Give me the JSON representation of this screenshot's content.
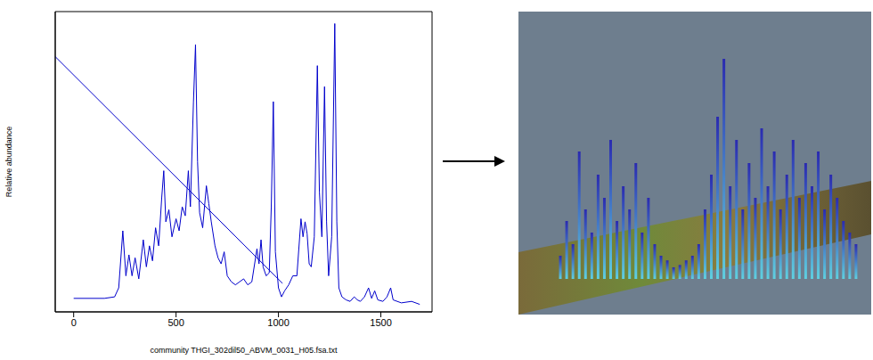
{
  "chart_data": [
    {
      "type": "line",
      "xlabel": "community THGI_302dil50_ABVM_0031_H05.fsa.txt",
      "ylabel": "Relative abundance",
      "xlim": [
        -90,
        1750
      ],
      "xticks": [
        0,
        500,
        1000,
        1500
      ],
      "ylim": [
        0,
        100
      ],
      "tick_labels": "x",
      "series": [
        {
          "color": "#0000cc",
          "x": [
            0,
            150,
            200,
            220,
            240,
            255,
            270,
            285,
            300,
            318,
            340,
            355,
            370,
            385,
            400,
            415,
            430,
            440,
            450,
            465,
            480,
            500,
            515,
            530,
            545,
            560,
            570,
            585,
            595,
            605,
            615,
            630,
            648,
            660,
            672,
            690,
            705,
            720,
            735,
            750,
            770,
            790,
            810,
            830,
            850,
            870,
            895,
            905,
            915,
            925,
            940,
            955,
            965,
            975,
            985,
            1000,
            1015,
            1030,
            1050,
            1070,
            1090,
            1110,
            1120,
            1130,
            1140,
            1150,
            1160,
            1175,
            1190,
            1200,
            1212,
            1225,
            1235,
            1245,
            1260,
            1275,
            1285,
            1295,
            1310,
            1330,
            1350,
            1370,
            1385,
            1400,
            1420,
            1440,
            1455,
            1470,
            1485,
            1510,
            1530,
            1548,
            1560,
            1600,
            1650,
            1690
          ],
          "values": [
            4.5,
            4.5,
            5,
            8,
            27,
            12,
            19,
            12,
            18,
            11,
            24,
            15,
            22,
            17,
            28,
            22,
            38,
            47,
            30,
            34,
            25,
            31,
            27,
            35,
            32,
            47,
            35,
            70,
            89,
            50,
            33,
            28,
            42,
            36,
            30,
            22,
            18,
            16,
            20,
            12,
            10,
            9,
            10,
            11,
            9,
            10,
            21,
            16,
            24,
            15,
            12,
            13,
            35,
            70,
            20,
            8,
            5,
            7,
            9,
            12,
            12,
            31,
            25,
            30,
            26,
            16,
            15,
            25,
            82,
            40,
            25,
            75,
            30,
            12,
            25,
            96,
            30,
            8,
            5,
            4,
            3.5,
            5,
            4,
            3.5,
            5,
            8,
            4.5,
            7,
            4,
            3.5,
            5,
            8,
            4,
            3,
            3.5,
            2.5
          ]
        },
        {
          "color": "#0000cc",
          "x": [
            -90,
            1020
          ],
          "values": [
            85,
            9.5
          ]
        }
      ]
    },
    {
      "type": "bar",
      "x": [
        1,
        2,
        3,
        4,
        5,
        6,
        7,
        8,
        9,
        10,
        11,
        12,
        13,
        14,
        15,
        16,
        17,
        18,
        19,
        20,
        21,
        22,
        23,
        24,
        25,
        26,
        27,
        28,
        29,
        30,
        31,
        32,
        33,
        34,
        35,
        36,
        37,
        38,
        39,
        40,
        41,
        42,
        43,
        44,
        45,
        46,
        47,
        48
      ],
      "values": [
        10,
        25,
        15,
        55,
        30,
        20,
        45,
        35,
        60,
        25,
        40,
        30,
        50,
        20,
        35,
        15,
        10,
        8,
        5,
        6,
        8,
        10,
        15,
        30,
        45,
        70,
        95,
        40,
        60,
        30,
        50,
        35,
        65,
        40,
        55,
        30,
        45,
        60,
        35,
        50,
        40,
        55,
        30,
        45,
        35,
        25,
        20,
        15
      ],
      "color": "#2a2ab0",
      "xlim": [
        0,
        49
      ],
      "ylim": [
        0,
        100
      ],
      "tick_labels": false
    }
  ]
}
